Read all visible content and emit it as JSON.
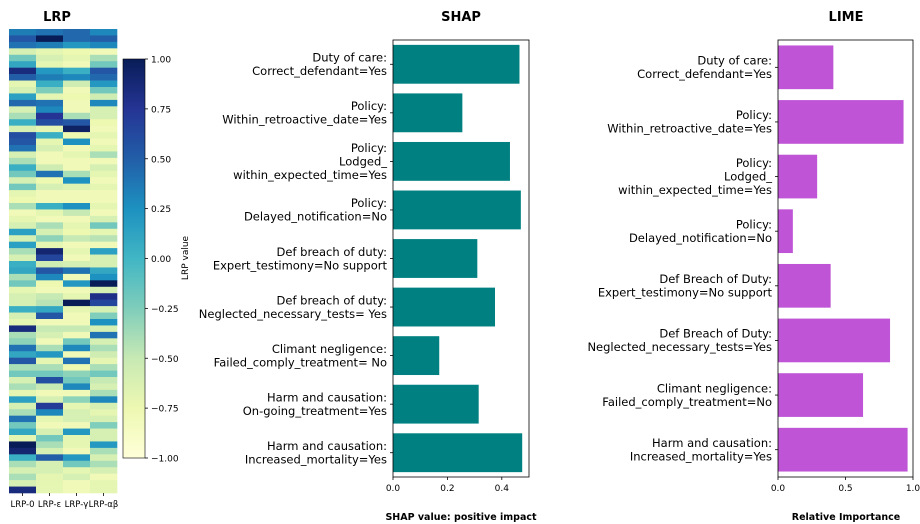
{
  "chart_data": [
    {
      "type": "heatmap",
      "title": "LRP",
      "columns": [
        "LRP-0",
        "LRP-ε",
        "LRP-γ",
        "LRP-αβ"
      ],
      "colorbar_label": "LRP value",
      "colorbar_ticks": [
        "1.00",
        "0.75",
        "0.50",
        "0.25",
        "0.00",
        "−0.25",
        "−0.50",
        "−0.75",
        "−1.00"
      ],
      "colorbar_range": [
        -1,
        1
      ],
      "colormap": [
        "#ffffd9",
        "#edf8b1",
        "#c7e9b4",
        "#7fcdbb",
        "#41b6c4",
        "#1d91c0",
        "#225ea8",
        "#253494",
        "#081d58"
      ],
      "values": [
        [
          0.35,
          0.4,
          0.45,
          0.3
        ],
        [
          0.55,
          1.0,
          0.45,
          0.5
        ],
        [
          0.4,
          0.35,
          0.2,
          0.3
        ],
        [
          -0.6,
          -0.7,
          -0.75,
          -0.8
        ],
        [
          -0.2,
          -0.6,
          -0.7,
          -0.4
        ],
        [
          0.1,
          -0.7,
          -0.8,
          -0.2
        ],
        [
          0.85,
          0.2,
          0.05,
          0.55
        ],
        [
          0.5,
          0.35,
          0.3,
          0.45
        ],
        [
          -0.7,
          0.05,
          -0.55,
          0.2
        ],
        [
          -0.6,
          -0.25,
          -0.8,
          -0.2
        ],
        [
          0.15,
          -0.7,
          -0.75,
          -0.55
        ],
        [
          0.45,
          0.4,
          -0.8,
          0.3
        ],
        [
          -0.6,
          0.3,
          -0.8,
          -0.6
        ],
        [
          -0.4,
          0.75,
          -0.4,
          -0.6
        ],
        [
          0.05,
          0.6,
          0.55,
          -0.75
        ],
        [
          -0.6,
          -0.7,
          0.95,
          -0.8
        ],
        [
          0.6,
          0.05,
          -0.75,
          -0.7
        ],
        [
          0.55,
          -0.7,
          0.25,
          -0.8
        ],
        [
          0.4,
          -0.6,
          -0.8,
          -0.7
        ],
        [
          -0.6,
          -0.8,
          -0.7,
          -0.4
        ],
        [
          -0.4,
          -0.8,
          -0.8,
          -0.8
        ],
        [
          0.05,
          -0.55,
          -0.8,
          -0.6
        ],
        [
          -0.2,
          0.4,
          -0.4,
          -0.7
        ],
        [
          -0.6,
          -0.75,
          0.25,
          -0.8
        ],
        [
          -0.2,
          -0.6,
          -0.65,
          -0.7
        ],
        [
          -0.7,
          -0.8,
          -0.8,
          -0.8
        ],
        [
          -0.75,
          -0.8,
          -0.8,
          -0.8
        ],
        [
          -0.4,
          0.05,
          0.25,
          -0.7
        ],
        [
          -0.8,
          -0.7,
          -0.5,
          -0.8
        ],
        [
          -0.7,
          -0.8,
          -0.8,
          -0.6
        ],
        [
          -0.6,
          -0.4,
          -0.7,
          -0.2
        ],
        [
          0.15,
          -0.6,
          -0.75,
          -0.7
        ],
        [
          -0.6,
          -0.3,
          -0.5,
          -0.45
        ],
        [
          0.15,
          -0.7,
          -0.8,
          -0.8
        ],
        [
          -0.4,
          0.9,
          -0.7,
          0.15
        ],
        [
          -0.6,
          0.65,
          -0.8,
          -0.6
        ],
        [
          0.05,
          -0.55,
          -0.6,
          -0.6
        ],
        [
          0.1,
          0.55,
          0.4,
          0.1
        ],
        [
          -0.4,
          0.3,
          -0.8,
          0.25
        ],
        [
          -0.2,
          -0.75,
          0.2,
          1.0
        ],
        [
          -0.7,
          -0.8,
          -0.8,
          -0.6
        ],
        [
          -0.6,
          -0.5,
          -0.7,
          0.8
        ],
        [
          -0.6,
          -0.45,
          1.0,
          0.65
        ],
        [
          0.05,
          0.1,
          -0.7,
          -0.6
        ],
        [
          -0.6,
          0.55,
          -0.8,
          -0.25
        ],
        [
          -0.7,
          -0.8,
          -0.8,
          0.25
        ],
        [
          0.85,
          -0.5,
          -0.5,
          -0.6
        ],
        [
          -0.4,
          -0.6,
          -0.8,
          0.4
        ],
        [
          -0.3,
          -0.8,
          -0.2,
          -0.6
        ],
        [
          0.4,
          -0.4,
          0.3,
          -0.4
        ],
        [
          0.1,
          0.2,
          -0.8,
          -0.55
        ],
        [
          0.55,
          -0.7,
          0.4,
          -0.7
        ],
        [
          -0.4,
          -0.4,
          -0.75,
          -0.4
        ],
        [
          -0.2,
          -0.2,
          -0.3,
          -0.2
        ],
        [
          -0.6,
          0.6,
          -0.2,
          -0.5
        ],
        [
          -0.4,
          -0.5,
          0.3,
          -0.6
        ],
        [
          -0.7,
          -0.8,
          -0.8,
          -0.4
        ],
        [
          0.15,
          -0.6,
          -0.3,
          0.3
        ],
        [
          -0.6,
          0.7,
          -0.7,
          -0.6
        ],
        [
          -0.4,
          0.3,
          -0.6,
          -0.7
        ],
        [
          0.4,
          -0.7,
          -0.6,
          -0.6
        ],
        [
          -0.2,
          -0.8,
          -0.8,
          -0.25
        ],
        [
          0.1,
          -0.6,
          0.2,
          -0.6
        ],
        [
          -0.7,
          -0.2,
          -0.7,
          -0.6
        ],
        [
          1.0,
          -0.4,
          -0.7,
          0.2
        ],
        [
          0.9,
          -0.6,
          -0.8,
          -0.4
        ],
        [
          0.05,
          0.5,
          0.2,
          -0.6
        ],
        [
          -0.4,
          -0.6,
          -0.2,
          -0.4
        ],
        [
          -0.6,
          -0.6,
          -0.7,
          -0.6
        ],
        [
          -0.4,
          -0.7,
          -0.6,
          -0.8
        ],
        [
          -0.6,
          -0.7,
          -0.8,
          -0.7
        ],
        [
          0.85,
          -0.7,
          -0.8,
          -0.7
        ]
      ]
    },
    {
      "type": "bar",
      "orientation": "horizontal",
      "title": "SHAP",
      "xlabel": "SHAP value: positive impact",
      "xlim": [
        0,
        0.5
      ],
      "xticks": [
        "0.0",
        "0.2",
        "0.4"
      ],
      "color": "#008080",
      "categories": [
        [
          "Duty of care:",
          "Correct_defendant=Yes"
        ],
        [
          "Policy:",
          "Within_retroactive_date=Yes"
        ],
        [
          "Policy:",
          "Lodged_",
          "within_expected_time=Yes"
        ],
        [
          "Policy:",
          "Delayed_notification=No"
        ],
        [
          "Def breach of duty:",
          "Expert_testimony=No support"
        ],
        [
          "Def breach of duty:",
          "Neglected_necessary_tests= Yes"
        ],
        [
          "Climant negligence:",
          "Failed_comply_treatment= No"
        ],
        [
          "Harm and causation:",
          "On-going_treatment=Yes"
        ],
        [
          "Harm and causation:",
          "Increased_mortality=Yes"
        ]
      ],
      "values": [
        0.465,
        0.255,
        0.43,
        0.47,
        0.31,
        0.375,
        0.17,
        0.315,
        0.475
      ]
    },
    {
      "type": "bar",
      "orientation": "horizontal",
      "title": "LIME",
      "xlabel": "Relative Importance",
      "xlim": [
        0,
        1.0
      ],
      "xticks": [
        "0.0",
        "0.5",
        "1.0"
      ],
      "color": "#bf55d6",
      "categories": [
        [
          "Duty of care:",
          "Correct_defendant=Yes"
        ],
        [
          "Policy:",
          "Within_retroactive_date=Yes"
        ],
        [
          "Policy:",
          "Lodged_",
          "within_expected_time=Yes"
        ],
        [
          "Policy:",
          "Delayed_notification=No"
        ],
        [
          "Def Breach of Duty:",
          "Expert_testimony=No support"
        ],
        [
          "Def Breach of Duty:",
          "Neglected_necessary_tests=Yes"
        ],
        [
          "Climant negligence:",
          "Failed_comply_treatment=No"
        ],
        [
          "Harm and causation:",
          "Increased_mortality=Yes"
        ]
      ],
      "values": [
        0.41,
        0.93,
        0.29,
        0.11,
        0.39,
        0.83,
        0.63,
        0.96
      ]
    }
  ]
}
